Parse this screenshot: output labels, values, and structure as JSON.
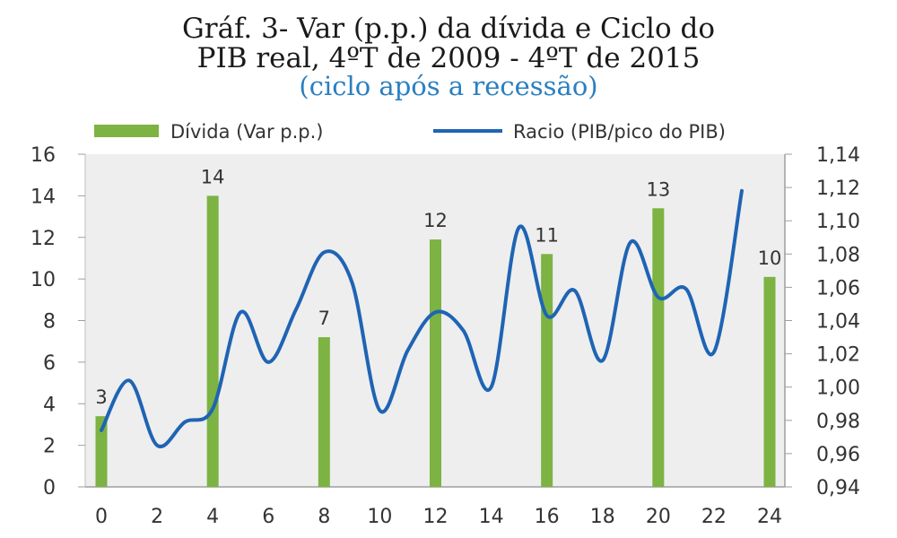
{
  "chart_data": {
    "type": "bar+line",
    "title_line1": "Gráf. 3- Var (p.p.) da dívida e Ciclo do",
    "title_line2": "PIB real, 4ºT de 2009 - 4ºT de 2015",
    "subtitle": "(ciclo após a recessão)",
    "legend": {
      "bar_label": "Dívida (Var p.p.)",
      "line_label": "Racio (PIB/pico do PIB)"
    },
    "colors": {
      "bars": "#7cb342",
      "line": "#1f64b4",
      "plot_bg": "#eeeeee",
      "subtitle": "#2a7fc0"
    },
    "x_ticks": [
      "0",
      "2",
      "4",
      "6",
      "8",
      "10",
      "12",
      "14",
      "16",
      "18",
      "20",
      "22",
      "24"
    ],
    "xlim": [
      0,
      24
    ],
    "y_left": {
      "ticks": [
        "0",
        "2",
        "4",
        "6",
        "8",
        "10",
        "12",
        "14",
        "16"
      ],
      "ylim": [
        0,
        16
      ]
    },
    "y_right": {
      "ticks": [
        "0,94",
        "0,96",
        "0,98",
        "1,00",
        "1,02",
        "1,04",
        "1,06",
        "1,08",
        "1,10",
        "1,12",
        "1,14"
      ],
      "ylim": [
        0.94,
        1.14
      ]
    },
    "bars": [
      {
        "x": 0,
        "value": 3.4,
        "label": "3"
      },
      {
        "x": 4,
        "value": 14,
        "label": "14"
      },
      {
        "x": 8,
        "value": 7.2,
        "label": "7"
      },
      {
        "x": 12,
        "value": 11.9,
        "label": "12"
      },
      {
        "x": 16,
        "value": 11.2,
        "label": "11"
      },
      {
        "x": 20,
        "value": 13.4,
        "label": "13"
      },
      {
        "x": 24,
        "value": 10.1,
        "label": "10"
      }
    ],
    "line": {
      "x": [
        0,
        1,
        2,
        3,
        4,
        5,
        6,
        7,
        8,
        9,
        10,
        11,
        12,
        13,
        14,
        15,
        16,
        17,
        18,
        19,
        20,
        21,
        22,
        23
      ],
      "y": [
        0.974,
        1.004,
        0.965,
        0.979,
        0.987,
        1.045,
        1.015,
        1.047,
        1.081,
        1.063,
        0.986,
        1.022,
        1.045,
        1.034,
        1.0,
        1.096,
        1.043,
        1.058,
        1.016,
        1.087,
        1.054,
        1.059,
        1.021,
        1.118
      ]
    }
  }
}
